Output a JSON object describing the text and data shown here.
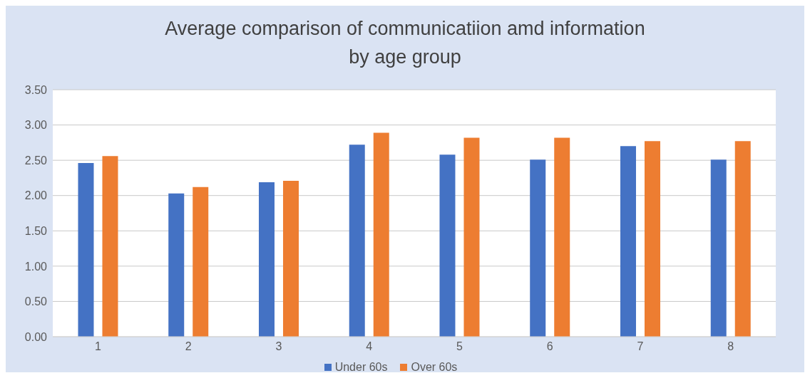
{
  "chart_data": {
    "type": "bar",
    "title": "Average comparison of communicatiion amd information\nby age group",
    "categories": [
      "1",
      "2",
      "3",
      "4",
      "5",
      "6",
      "7",
      "8"
    ],
    "series": [
      {
        "name": "Under 60s",
        "color": "#4472c4",
        "values": [
          2.46,
          2.03,
          2.19,
          2.72,
          2.58,
          2.51,
          2.7,
          2.51
        ]
      },
      {
        "name": "Over 60s",
        "color": "#ed7d31",
        "values": [
          2.56,
          2.12,
          2.21,
          2.89,
          2.82,
          2.82,
          2.77,
          2.77
        ]
      }
    ],
    "ylim": [
      0,
      3.5
    ],
    "yticks": [
      {
        "value": 0,
        "label": "0.00"
      },
      {
        "value": 0.5,
        "label": "0.50"
      },
      {
        "value": 1,
        "label": "1.00"
      },
      {
        "value": 1.5,
        "label": "1.50"
      },
      {
        "value": 2,
        "label": "2.00"
      },
      {
        "value": 2.5,
        "label": "2.50"
      },
      {
        "value": 3,
        "label": "3.00"
      },
      {
        "value": 3.5,
        "label": "3.50"
      }
    ],
    "grid": "y",
    "legend": "bottom"
  }
}
